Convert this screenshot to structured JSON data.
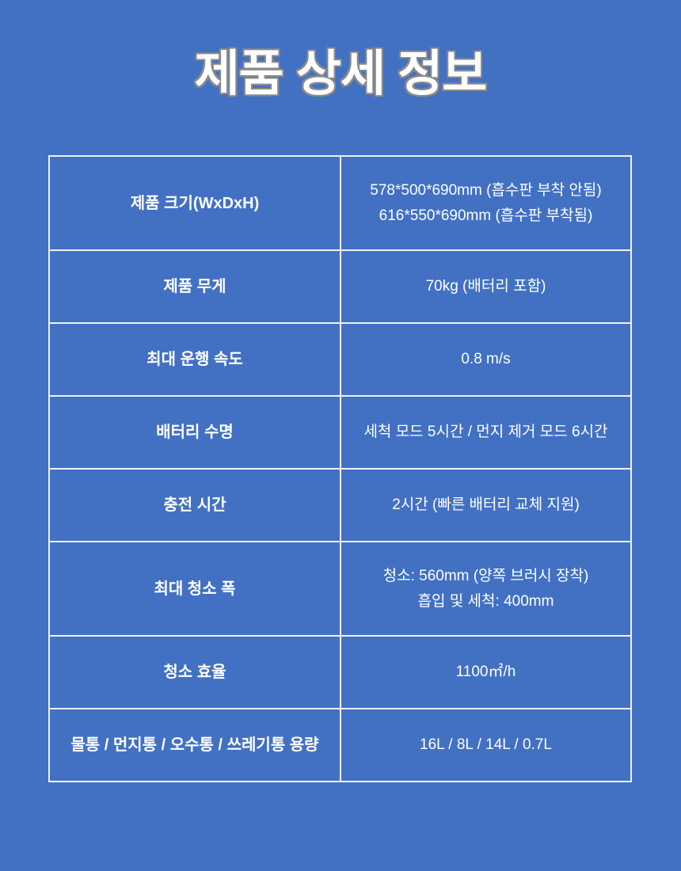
{
  "page": {
    "title": "제품 상세 정보",
    "background_color": "#4271C3",
    "title_fill_color": "#FFFFFF",
    "title_outline_color": "#8A8A8A"
  },
  "table": {
    "grid_line_color": "#EFF2F7",
    "cell_background_color": "#4271C3",
    "text_color": "#FFFFFF",
    "rows": [
      {
        "label": "제품 크기(WxDxH)",
        "values": [
          "578*500*690mm (흡수판 부착 안됨)",
          "616*550*690mm (흡수판 부착됨)"
        ]
      },
      {
        "label": "제품 무게",
        "values": [
          "70kg (배터리 포함)"
        ]
      },
      {
        "label": "최대 운행 속도",
        "values": [
          "0.8 m/s"
        ]
      },
      {
        "label": "배터리 수명",
        "values": [
          "세척 모드 5시간 / 먼지 제거 모드 6시간"
        ]
      },
      {
        "label": "충전 시간",
        "values": [
          "2시간 (빠른 배터리 교체 지원)"
        ]
      },
      {
        "label": "최대 청소 폭",
        "values": [
          "청소: 560mm (양쪽 브러시 장착)",
          "흡입 및 세척: 400mm"
        ]
      },
      {
        "label": "청소 효율",
        "values": [
          "1100㎡/h"
        ]
      },
      {
        "label": "물통 / 먼지통 / 오수통 / 쓰레기통 용량",
        "values": [
          "16L / 8L / 14L / 0.7L"
        ]
      }
    ]
  }
}
